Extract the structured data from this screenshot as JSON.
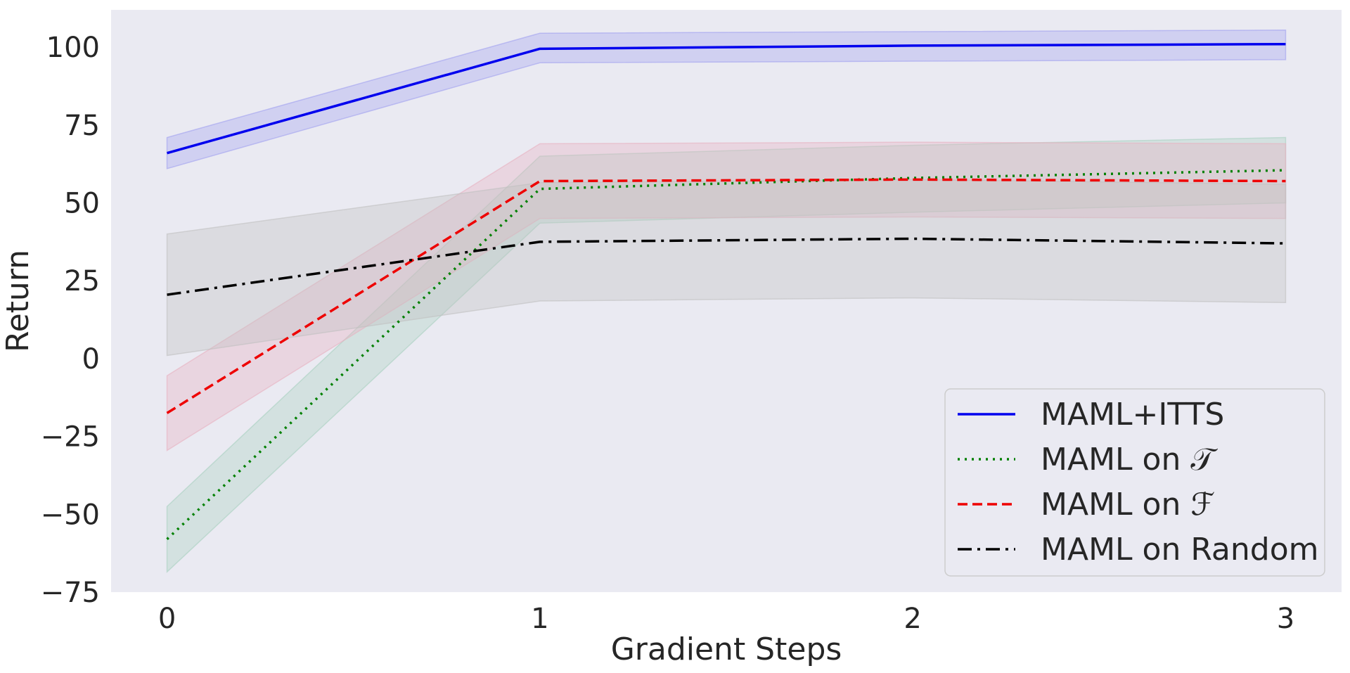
{
  "chart_data": {
    "type": "line",
    "title": "",
    "xlabel": "Gradient Steps",
    "ylabel": "Return",
    "x": [
      0,
      1,
      2,
      3
    ],
    "xlim": [
      -0.15,
      3.15
    ],
    "ylim": [
      -75,
      112
    ],
    "xticks": [
      0,
      1,
      2,
      3
    ],
    "xtick_labels": [
      "0",
      "1",
      "2",
      "3"
    ],
    "yticks": [
      -75,
      -50,
      -25,
      0,
      25,
      50,
      75,
      100
    ],
    "ytick_labels": [
      "−75",
      "−50",
      "−25",
      "0",
      "25",
      "50",
      "75",
      "100"
    ],
    "grid": false,
    "background_color": "#eaeaf2",
    "legend_position": "bottom-right",
    "series": [
      {
        "name": "MAML+ITTS",
        "color": "#0000ee",
        "dash": "solid",
        "values": [
          66,
          99.5,
          100.5,
          101
        ],
        "lower": [
          61,
          95,
          95.5,
          96
        ],
        "upper": [
          71,
          104.5,
          105,
          105.5
        ],
        "band_color": "#a0a0f0"
      },
      {
        "name": "MAML on 𝒯",
        "color": "#008000",
        "dash": "dotted",
        "values": [
          -58,
          54.5,
          58,
          60.5
        ],
        "lower": [
          -68.5,
          43.5,
          47,
          50
        ],
        "upper": [
          -47.5,
          65,
          68.5,
          71
        ],
        "band_color": "#a8d0c0"
      },
      {
        "name": "MAML on ℱ",
        "color": "#ee0000",
        "dash": "dashed",
        "values": [
          -17.5,
          57,
          57.5,
          57
        ],
        "lower": [
          -29.5,
          45,
          45.5,
          45
        ],
        "upper": [
          -5.5,
          69,
          69.5,
          69
        ],
        "band_color": "#e8b0c0"
      },
      {
        "name": "MAML on Random",
        "color": "#000000",
        "dash": "dashdot",
        "values": [
          20.5,
          37.5,
          38.5,
          37
        ],
        "lower": [
          1,
          18.5,
          19.5,
          18
        ],
        "upper": [
          40,
          56.5,
          57.5,
          56
        ],
        "band_color": "#c0c0c0"
      }
    ]
  }
}
